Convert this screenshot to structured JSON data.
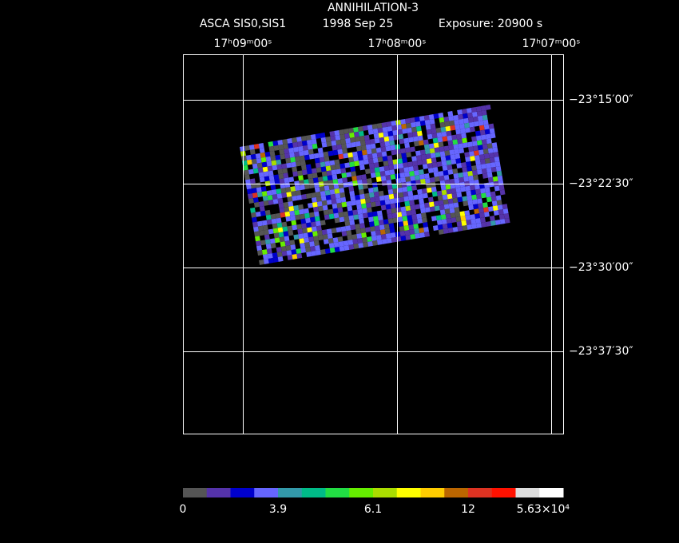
{
  "title": "ANNIHILATION-3",
  "subtitle": {
    "instrument": "ASCA SIS0,SIS1",
    "date": "1998 Sep 25",
    "exposure": "Exposure: 20900 s"
  },
  "ra_labels": [
    "17ʰ09ᵐ00ˢ",
    "17ʰ08ᵐ00ˢ",
    "17ʰ07ᵐ00ˢ"
  ],
  "dec_labels": [
    "−23°15′00″",
    "−23°22′30″",
    "−23°30′00″",
    "−23°37′30″"
  ],
  "colorbar": {
    "colors": [
      "#555555",
      "#5533aa",
      "#0000cc",
      "#6666ff",
      "#3399aa",
      "#00bb88",
      "#22dd44",
      "#66ee00",
      "#aadd00",
      "#ffff00",
      "#ffcc00",
      "#bb6600",
      "#dd3322",
      "#ff1100",
      "#dddddd",
      "#ffffff"
    ],
    "labels": [
      "0",
      "3.9",
      "6.1",
      "12",
      "5.63×10⁴"
    ]
  }
}
